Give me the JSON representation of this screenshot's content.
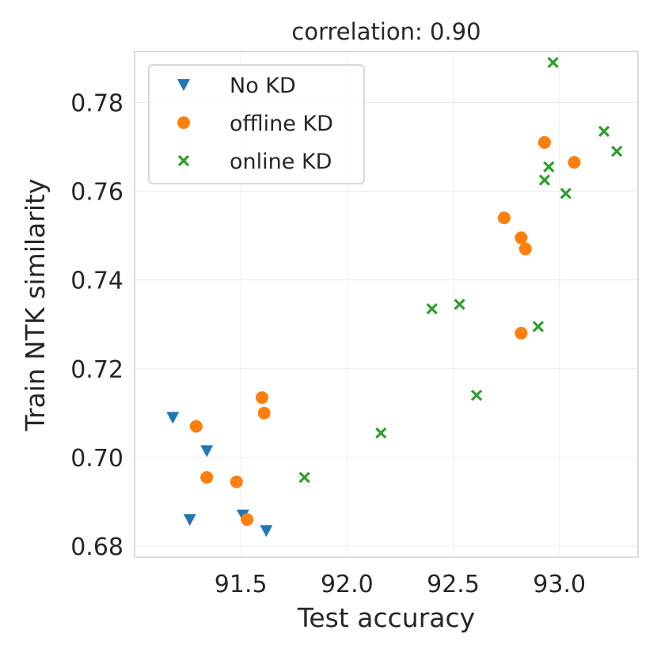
{
  "chart_data": {
    "type": "scatter",
    "title": "correlation: 0.90",
    "xlabel": "Test accuracy",
    "ylabel": "Train NTK similarity",
    "xlim": [
      91.0,
      93.37
    ],
    "ylim": [
      0.6775,
      0.7915
    ],
    "xticks": [
      91.5,
      92.0,
      92.5,
      93.0
    ],
    "xtick_labels": [
      "91.5",
      "92.0",
      "92.5",
      "93.0"
    ],
    "yticks": [
      0.68,
      0.7,
      0.72,
      0.74,
      0.76,
      0.78
    ],
    "ytick_labels": [
      "0.68",
      "0.70",
      "0.72",
      "0.74",
      "0.76",
      "0.78"
    ],
    "grid": true,
    "legend_position": "top-left",
    "series": [
      {
        "name": "No KD",
        "marker": "triangle-down",
        "color": "#1f77b4",
        "x": [
          91.18,
          91.26,
          91.34,
          91.51,
          91.62
        ],
        "y": [
          0.709,
          0.686,
          0.7015,
          0.687,
          0.6835
        ]
      },
      {
        "name": "offline KD",
        "marker": "circle",
        "color": "#ff7f0e",
        "x": [
          91.29,
          91.34,
          91.48,
          91.53,
          91.6,
          91.61,
          92.74,
          92.82,
          92.82,
          92.84,
          92.93,
          93.07
        ],
        "y": [
          0.707,
          0.6955,
          0.6945,
          0.686,
          0.7135,
          0.71,
          0.754,
          0.7495,
          0.728,
          0.747,
          0.771,
          0.7665
        ]
      },
      {
        "name": "online KD",
        "marker": "x",
        "color": "#2ca02c",
        "x": [
          91.8,
          92.16,
          92.4,
          92.53,
          92.61,
          92.9,
          92.93,
          92.95,
          92.97,
          93.03,
          93.21,
          93.27
        ],
        "y": [
          0.6955,
          0.7055,
          0.7335,
          0.7345,
          0.714,
          0.7295,
          0.7625,
          0.7655,
          0.789,
          0.7595,
          0.7735,
          0.769
        ]
      }
    ]
  }
}
